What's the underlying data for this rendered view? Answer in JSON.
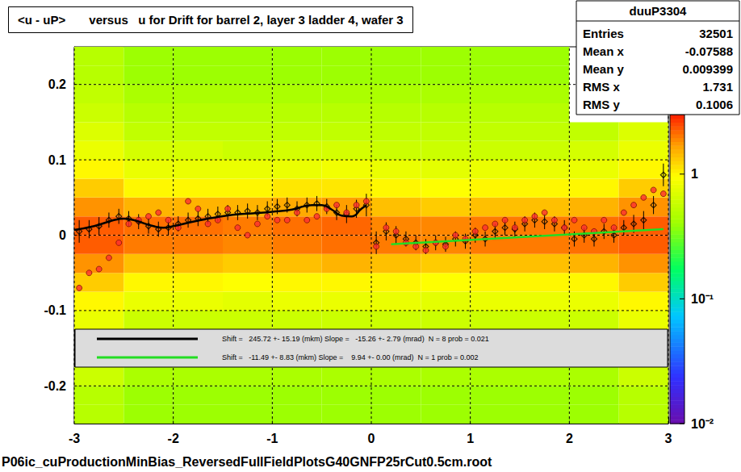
{
  "chart_data": {
    "type": "scatter",
    "title": "<u - uP>       versus   u for Drift for barrel 2, layer 3 ladder 4, wafer 3",
    "footnote": "P06ic_cuProductionMinBias_ReversedFullFieldPlotsG40GNFP25rCut0.5cm.root",
    "xlim": [
      -3,
      3
    ],
    "xticks": [
      -3,
      -2,
      -1,
      0,
      1,
      2,
      3
    ],
    "ylim": [
      -0.25,
      0.25
    ],
    "yticks": [
      -0.2,
      -0.1,
      0,
      0.1,
      0.2
    ],
    "grid": true,
    "stats": {
      "title": "duuP3304",
      "rows": [
        [
          "Entries",
          32501
        ],
        [
          "Mean x",
          -0.07588
        ],
        [
          "Mean y",
          0.009399
        ],
        [
          "RMS x",
          1.731
        ],
        [
          "RMS y",
          0.1006
        ]
      ]
    },
    "heatmap": {
      "x_edges": [
        -3,
        -2.5,
        -2,
        -1.5,
        -1,
        -0.5,
        0,
        0.5,
        1,
        1.5,
        2,
        2.5,
        3
      ],
      "y_edges": [
        -0.25,
        -0.225,
        -0.2,
        -0.175,
        -0.15,
        -0.125,
        -0.1,
        -0.075,
        -0.05,
        -0.025,
        0,
        0.025,
        0.05,
        0.075,
        0.1,
        0.125,
        0.15,
        0.175,
        0.2,
        0.225,
        0.25
      ],
      "cells": [
        [
          0.5,
          0.4,
          0.4,
          0.4,
          0.4,
          0.4,
          0.4,
          0.4,
          0.4,
          0.4,
          0.4,
          0.5
        ],
        [
          0.5,
          0.4,
          0.4,
          0.4,
          0.4,
          0.4,
          0.4,
          0.4,
          0.4,
          0.4,
          0.4,
          0.5
        ],
        [
          0.6,
          0.45,
          0.45,
          0.45,
          0.45,
          0.45,
          0.45,
          0.45,
          0.45,
          0.45,
          0.45,
          0.6
        ],
        [
          null,
          null,
          null,
          null,
          null,
          null,
          null,
          null,
          null,
          null,
          null,
          null
        ],
        [
          null,
          null,
          null,
          null,
          null,
          null,
          null,
          null,
          null,
          null,
          null,
          null
        ],
        [
          0.8,
          0.6,
          0.6,
          0.6,
          0.6,
          0.6,
          0.6,
          0.6,
          0.6,
          0.6,
          0.6,
          0.8
        ],
        [
          1.0,
          0.8,
          0.8,
          0.75,
          0.8,
          0.8,
          0.8,
          0.75,
          0.8,
          0.8,
          0.8,
          1.0
        ],
        [
          1.3,
          1.0,
          1.0,
          0.95,
          1.0,
          1.0,
          1.0,
          0.95,
          1.0,
          1.0,
          1.0,
          1.3
        ],
        [
          1.8,
          1.4,
          1.4,
          1.3,
          1.4,
          1.5,
          1.4,
          1.3,
          1.4,
          1.4,
          1.5,
          1.8
        ],
        [
          2.3,
          2.0,
          2.0,
          1.9,
          2.0,
          2.1,
          2.0,
          1.9,
          2.0,
          2.0,
          2.1,
          2.3
        ],
        [
          2.3,
          2.1,
          2.1,
          2.0,
          2.1,
          2.2,
          1.9,
          1.9,
          2.0,
          2.0,
          2.1,
          2.3
        ],
        [
          1.8,
          1.5,
          1.5,
          1.5,
          1.6,
          1.7,
          1.4,
          1.3,
          1.4,
          1.4,
          1.5,
          1.8
        ],
        [
          1.3,
          1.0,
          1.0,
          1.0,
          1.1,
          1.1,
          1.0,
          0.95,
          1.0,
          1.0,
          1.0,
          1.3
        ],
        [
          1.0,
          0.8,
          0.8,
          0.8,
          0.8,
          0.85,
          0.8,
          0.75,
          0.8,
          0.8,
          0.8,
          1.0
        ],
        [
          0.8,
          0.65,
          0.65,
          0.6,
          0.65,
          0.65,
          0.6,
          0.6,
          0.6,
          0.6,
          0.65,
          0.8
        ],
        [
          0.7,
          0.55,
          0.55,
          0.55,
          0.55,
          0.55,
          0.55,
          0.55,
          0.55,
          0.55,
          0.55,
          0.7
        ],
        [
          0.6,
          0.5,
          0.5,
          0.5,
          0.5,
          0.5,
          0.5,
          0.5,
          0.5,
          0.5,
          null,
          null
        ],
        [
          0.55,
          0.45,
          0.45,
          0.45,
          0.45,
          0.45,
          0.45,
          0.45,
          0.45,
          0.45,
          null,
          null
        ],
        [
          0.5,
          0.4,
          0.4,
          0.4,
          0.4,
          0.4,
          0.4,
          0.4,
          0.4,
          0.4,
          null,
          null
        ],
        [
          0.5,
          0.4,
          0.4,
          0.4,
          0.4,
          0.4,
          0.4,
          0.4,
          0.4,
          0.4,
          null,
          null
        ]
      ]
    },
    "colorbar": {
      "range": [
        0.01,
        3
      ],
      "ticks": [
        {
          "value": 0.01,
          "label": "10⁻²"
        },
        {
          "value": 0.1,
          "label": "10⁻¹"
        },
        1
      ]
    },
    "series": [
      {
        "type": "scatter",
        "color": "#000000",
        "marker": "diamond",
        "x": [
          -2.95,
          -2.85,
          -2.75,
          -2.65,
          -2.55,
          -2.45,
          -2.35,
          -2.25,
          -2.15,
          -2.05,
          -1.95,
          -1.85,
          -1.75,
          -1.65,
          -1.55,
          -1.45,
          -1.35,
          -1.25,
          -1.15,
          -1.05,
          -0.95,
          -0.85,
          -0.75,
          -0.65,
          -0.55,
          -0.45,
          -0.35,
          -0.25,
          -0.15,
          -0.05,
          0.05,
          0.15,
          0.25,
          0.35,
          0.45,
          0.55,
          0.65,
          0.75,
          0.85,
          0.95,
          1.05,
          1.15,
          1.25,
          1.35,
          1.45,
          1.55,
          1.65,
          1.75,
          1.85,
          1.95,
          2.05,
          2.15,
          2.25,
          2.35,
          2.45,
          2.55,
          2.65,
          2.75,
          2.85,
          2.95
        ],
        "values": [
          0.005,
          0.008,
          0.012,
          0.02,
          0.025,
          0.022,
          0.018,
          0.012,
          0.008,
          0.01,
          0.015,
          0.02,
          0.022,
          0.025,
          0.028,
          0.03,
          0.03,
          0.032,
          0.03,
          0.035,
          0.038,
          0.04,
          0.035,
          0.04,
          0.042,
          0.038,
          0.03,
          0.028,
          0.035,
          0.04,
          -0.01,
          0.005,
          0.0,
          -0.005,
          -0.01,
          -0.015,
          -0.01,
          -0.012,
          -0.005,
          -0.008,
          0.0,
          -0.005,
          0.005,
          0.01,
          0.008,
          0.015,
          0.02,
          0.018,
          0.015,
          0.01,
          -0.005,
          0.0,
          -0.005,
          0.005,
          0.0,
          0.01,
          0.015,
          0.02,
          0.04,
          0.08
        ],
        "errors": [
          0.015,
          0.012,
          0.012,
          0.01,
          0.01,
          0.01,
          0.01,
          0.01,
          0.01,
          0.01,
          0.01,
          0.01,
          0.01,
          0.01,
          0.01,
          0.01,
          0.01,
          0.01,
          0.01,
          0.01,
          0.01,
          0.01,
          0.01,
          0.01,
          0.01,
          0.01,
          0.01,
          0.012,
          0.012,
          0.015,
          0.015,
          0.012,
          0.012,
          0.01,
          0.01,
          0.01,
          0.01,
          0.01,
          0.01,
          0.01,
          0.01,
          0.01,
          0.01,
          0.01,
          0.01,
          0.01,
          0.01,
          0.01,
          0.01,
          0.01,
          0.01,
          0.01,
          0.01,
          0.01,
          0.01,
          0.01,
          0.012,
          0.012,
          0.012,
          0.015
        ]
      },
      {
        "type": "scatter",
        "color": "#ff3030",
        "marker": "circle",
        "x": [
          -2.95,
          -2.85,
          -2.75,
          -2.65,
          -2.55,
          -2.45,
          -2.35,
          -2.25,
          -2.15,
          -2.05,
          -1.95,
          -1.85,
          -1.75,
          -1.65,
          -1.55,
          -1.45,
          -1.35,
          -1.25,
          -1.15,
          -1.05,
          -0.95,
          -0.85,
          -0.75,
          -0.65,
          -0.55,
          -0.45,
          -0.35,
          -0.25,
          -0.15,
          -0.05,
          0.05,
          0.15,
          0.25,
          0.35,
          0.45,
          0.55,
          0.65,
          0.75,
          0.85,
          0.95,
          1.05,
          1.15,
          1.25,
          1.35,
          1.45,
          1.55,
          1.65,
          1.75,
          1.85,
          1.95,
          2.05,
          2.15,
          2.25,
          2.35,
          2.45,
          2.55,
          2.65,
          2.75,
          2.85,
          2.95
        ],
        "values": [
          -0.07,
          -0.05,
          -0.045,
          -0.03,
          -0.01,
          0.015,
          0.02,
          0.025,
          0.03,
          0.02,
          0.01,
          0.045,
          0.035,
          0.015,
          0.02,
          0.035,
          0.01,
          0.0,
          0.015,
          0.025,
          0.02,
          0.02,
          0.03,
          0.02,
          0.025,
          0.035,
          0.04,
          0.03,
          0.04,
          0.045,
          -0.015,
          0.01,
          0.005,
          -0.01,
          -0.015,
          -0.02,
          -0.01,
          -0.015,
          0.0,
          -0.005,
          0.005,
          0.01,
          0.015,
          0.02,
          0.01,
          0.02,
          0.025,
          0.03,
          0.02,
          0.01,
          0.02,
          0.01,
          0.005,
          0.02,
          0.01,
          0.03,
          0.04,
          0.05,
          0.06,
          0.055
        ]
      },
      {
        "type": "line",
        "name": "Shift =   245.72 +- 15.19 (mkm) Slope =   -15.26 +- 2.79 (mrad)  N = 8 prob = 0.021",
        "color": "#000000",
        "x": [
          -3,
          -2.8,
          -2.6,
          -2.5,
          -2.4,
          -2.2,
          -2.1,
          -2.0,
          -1.8,
          -1.6,
          -1.4,
          -1.2,
          -1.0,
          -0.8,
          -0.6,
          -0.5,
          -0.4,
          -0.3,
          -0.2,
          -0.1,
          -0.05
        ],
        "values": [
          0.007,
          0.012,
          0.02,
          0.022,
          0.02,
          0.012,
          0.01,
          0.012,
          0.018,
          0.023,
          0.027,
          0.029,
          0.031,
          0.034,
          0.04,
          0.04,
          0.034,
          0.026,
          0.025,
          0.035,
          0.04
        ]
      },
      {
        "type": "line",
        "name": "Shift =   -11.49 +- 8.83 (mkm) Slope =    9.94 +- 0.00 (mrad)  N = 1 prob = 0.002",
        "color": "#22dd22",
        "x": [
          0.2,
          2.95
        ],
        "values": [
          -0.012,
          0.008
        ]
      }
    ]
  }
}
